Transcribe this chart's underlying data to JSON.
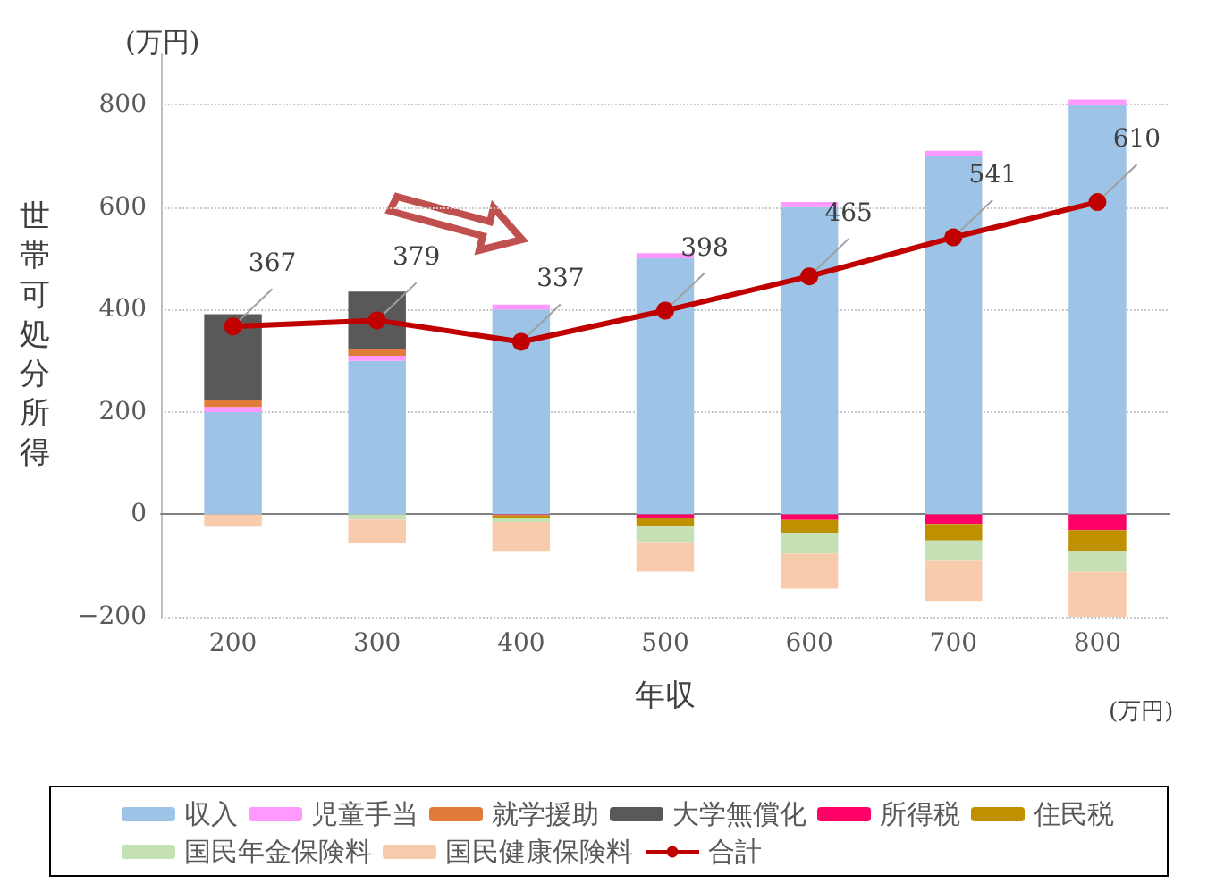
{
  "chart_data": {
    "type": "bar",
    "stacked": true,
    "xlabel": "年収",
    "ylabel": "世帯可処分所得",
    "annotations": [
      "(万円)",
      "(万円)"
    ],
    "categories": [
      "200",
      "300",
      "400",
      "500",
      "600",
      "700",
      "800"
    ],
    "ylim": [
      -200,
      900
    ],
    "yticks": [
      -200,
      0,
      200,
      400,
      600,
      800
    ],
    "grid": "y",
    "legend": "bottom",
    "series": [
      {
        "name": "収入",
        "color": "#9dc3e6",
        "values": [
          200,
          300,
          400,
          500,
          600,
          700,
          800
        ]
      },
      {
        "name": "児童手当",
        "color": "#ff99ff",
        "values": [
          10,
          10,
          10,
          10,
          10,
          10,
          10
        ]
      },
      {
        "name": "就学援助",
        "color": "#e07b39",
        "values": [
          13,
          13,
          null,
          null,
          null,
          null,
          null
        ]
      },
      {
        "name": "大学無償化",
        "color": "#595959",
        "values": [
          168,
          112,
          null,
          null,
          null,
          null,
          null
        ]
      },
      {
        "name": "所得税",
        "color": "#ff0066",
        "values": [
          null,
          null,
          -2,
          -7,
          -11,
          -19,
          -31
        ]
      },
      {
        "name": "住民税",
        "color": "#bf9000",
        "values": [
          null,
          null,
          -5,
          -16,
          -25,
          -32,
          -41
        ]
      },
      {
        "name": "国民年金保険料",
        "color": "#c5e0b4",
        "values": [
          null,
          -10,
          -8,
          -31,
          -41,
          -40,
          -40
        ]
      },
      {
        "name": "国民健康保険料",
        "color": "#f8cbad",
        "values": [
          -24,
          -46,
          -58,
          -58,
          -68,
          -78,
          -88
        ]
      },
      {
        "name": "合計",
        "type": "line",
        "color": "#c00000",
        "marker": "circle",
        "values": [
          367,
          379,
          337,
          398,
          465,
          541,
          610
        ],
        "value_labels": [
          "367",
          "379",
          "337",
          "398",
          "465",
          "541",
          "610"
        ]
      }
    ]
  }
}
